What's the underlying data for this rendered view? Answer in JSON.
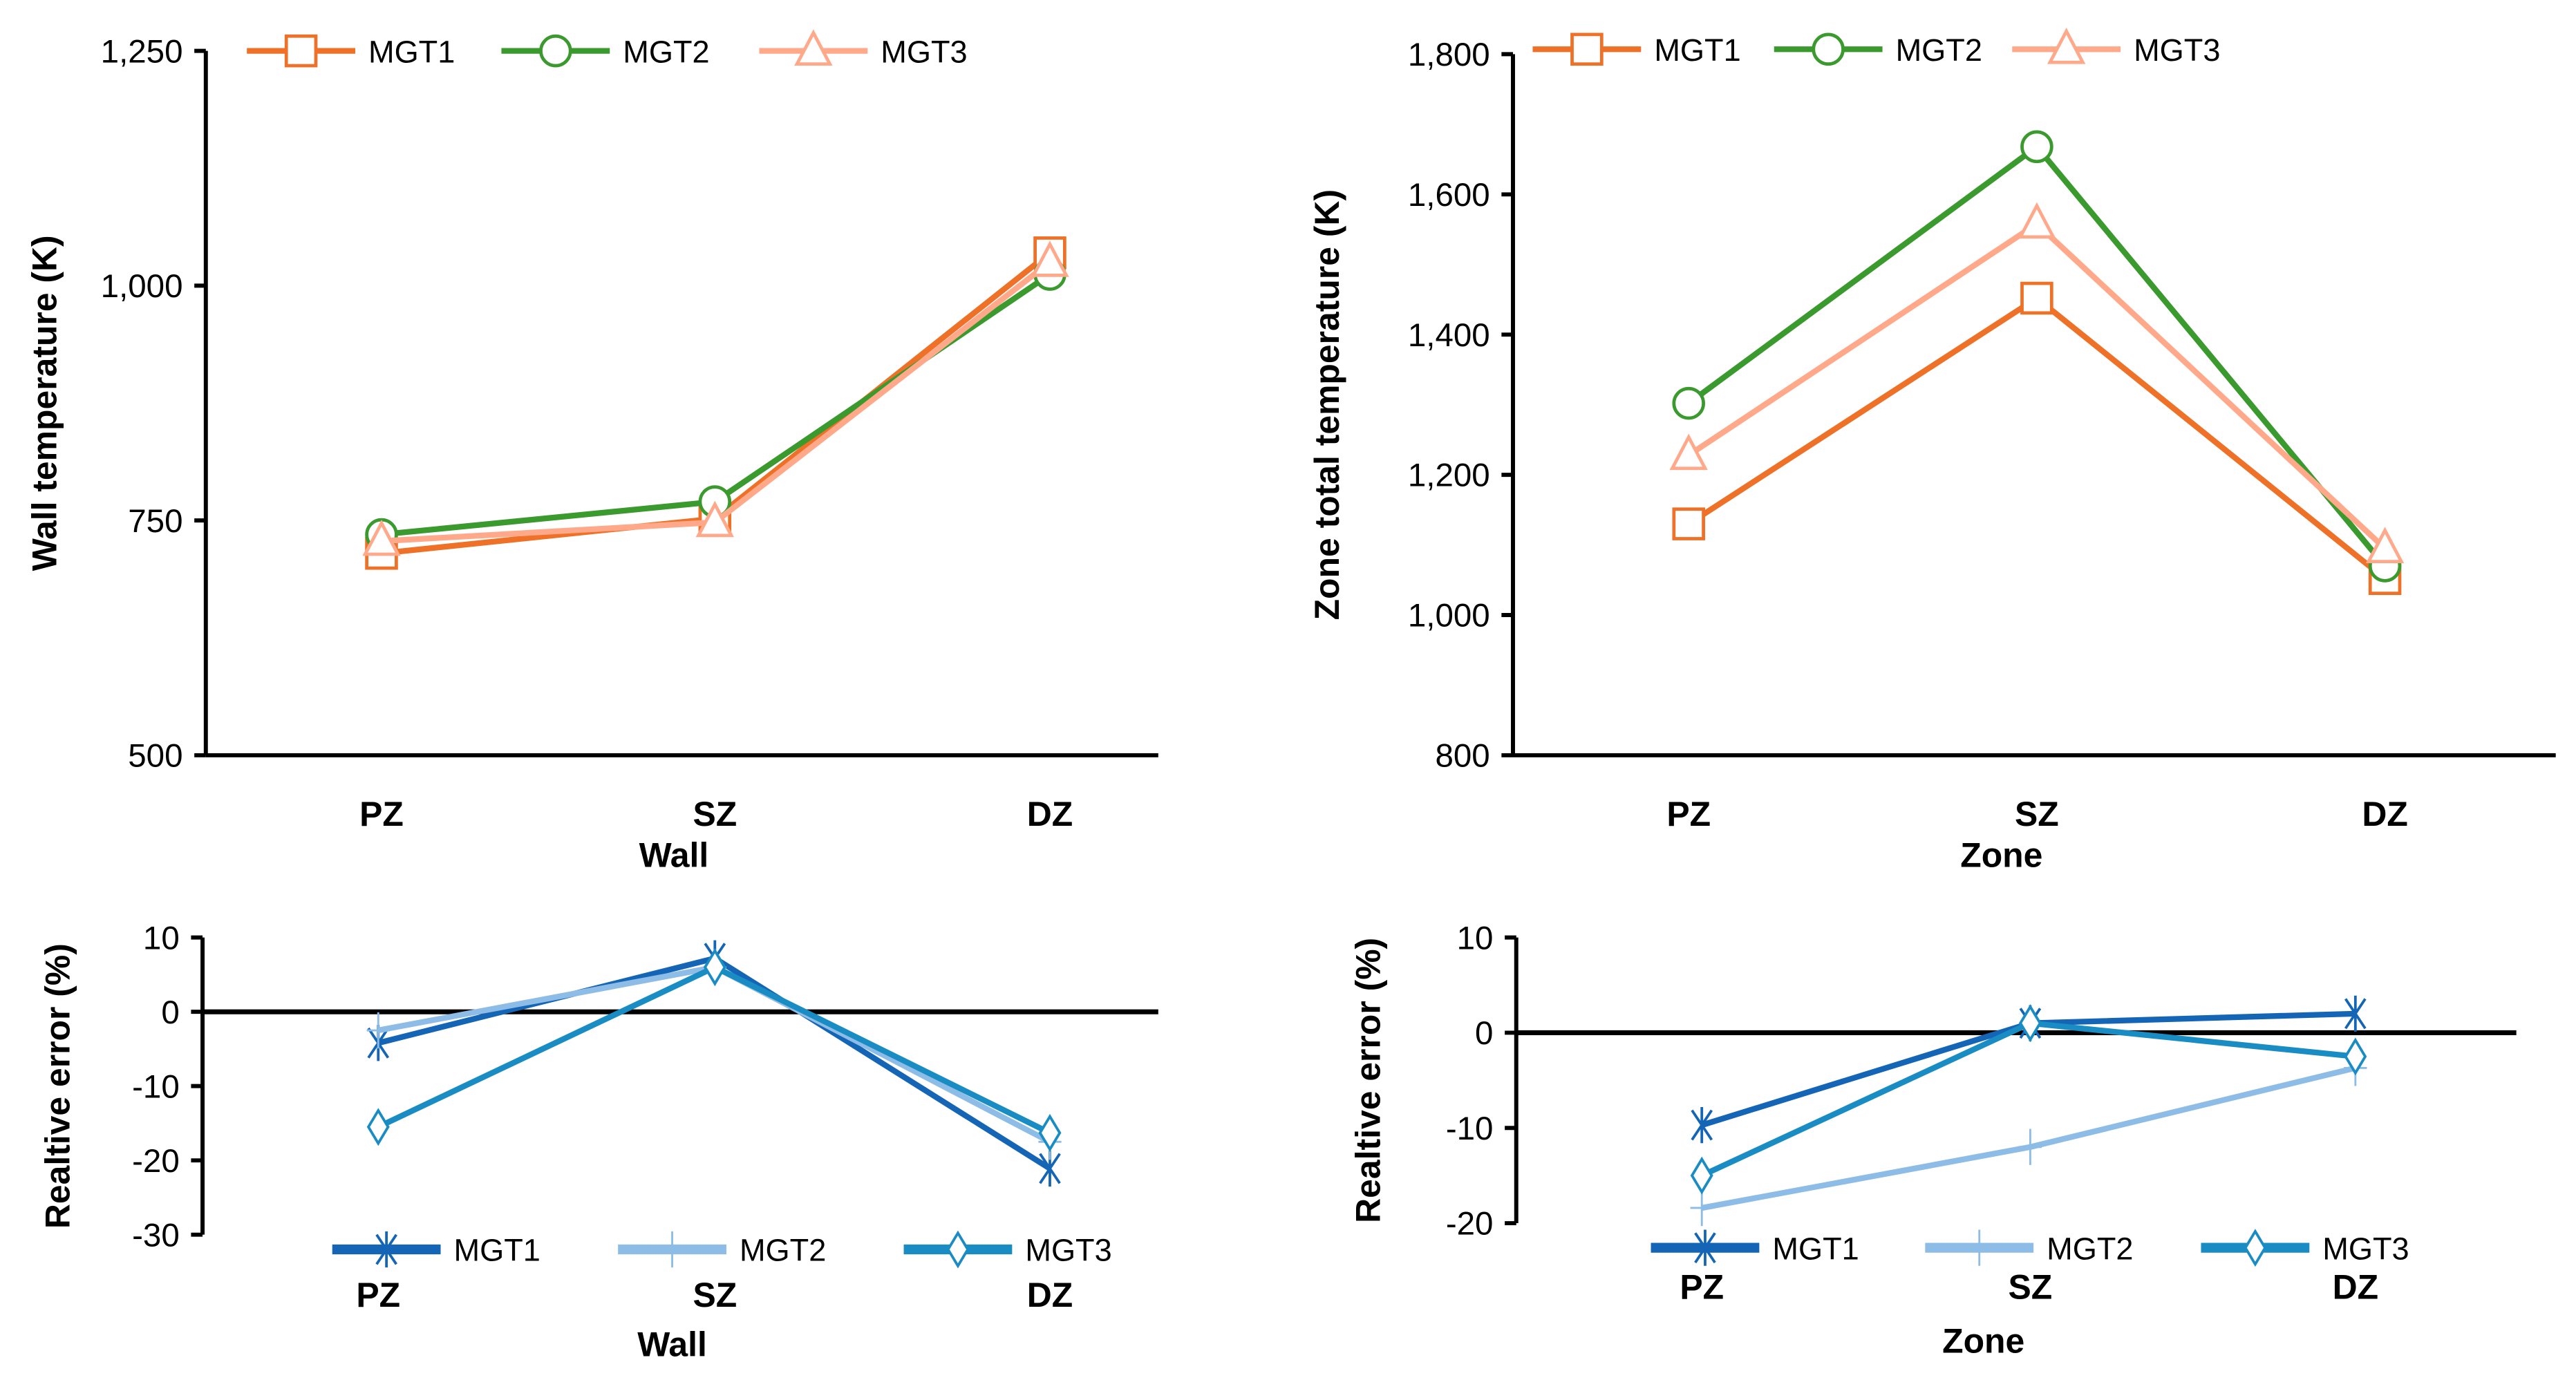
{
  "chart_data": [
    {
      "type": "line",
      "xlabel": "Wall",
      "ylabel": "Wall temperature (K)",
      "categories": [
        "PZ",
        "SZ",
        "DZ"
      ],
      "ylim": [
        500,
        1250
      ],
      "yticks": [
        500,
        750,
        1000,
        1250
      ],
      "ytick_labels": [
        "500",
        "750",
        "1,000",
        "1,250"
      ],
      "legend": "top",
      "grid": false,
      "series": [
        {
          "name": "MGT1",
          "values": [
            715,
            752,
            1035
          ],
          "color": "#EE7127",
          "marker": "square"
        },
        {
          "name": "MGT2",
          "values": [
            735,
            770,
            1012
          ],
          "color": "#3A9A2E",
          "marker": "circle"
        },
        {
          "name": "MGT3",
          "values": [
            728,
            748,
            1025
          ],
          "color": "#FFA98A",
          "marker": "triangle"
        }
      ]
    },
    {
      "type": "line",
      "xlabel": "Zone",
      "ylabel": "Zone total temperature (K)",
      "categories": [
        "PZ",
        "SZ",
        "DZ"
      ],
      "ylim": [
        800,
        1800
      ],
      "yticks": [
        800,
        1000,
        1200,
        1400,
        1600,
        1800
      ],
      "ytick_labels": [
        "800",
        "1,000",
        "1,200",
        "1,400",
        "1,600",
        "1,800"
      ],
      "legend": "top",
      "grid": false,
      "series": [
        {
          "name": "MGT1",
          "values": [
            1130,
            1452,
            1052
          ],
          "color": "#EE7127",
          "marker": "square"
        },
        {
          "name": "MGT2",
          "values": [
            1302,
            1668,
            1070
          ],
          "color": "#3A9A2E",
          "marker": "circle"
        },
        {
          "name": "MGT3",
          "values": [
            1228,
            1558,
            1095
          ],
          "color": "#FFA98A",
          "marker": "triangle"
        }
      ]
    },
    {
      "type": "line",
      "xlabel": "Wall",
      "ylabel": "Realtive error (%)",
      "categories": [
        "PZ",
        "SZ",
        "DZ"
      ],
      "ylim": [
        -30,
        10
      ],
      "yticks": [
        -30,
        -20,
        -10,
        0,
        10
      ],
      "ytick_labels": [
        "-30",
        "-20",
        "-10",
        "0",
        "10"
      ],
      "legend": "bottom",
      "grid": false,
      "series": [
        {
          "name": "MGT1",
          "values": [
            -4.2,
            7.2,
            -21.1
          ],
          "color": "#1565B7",
          "marker": "star"
        },
        {
          "name": "MGT2",
          "values": [
            -2.5,
            6.0,
            -17.5
          ],
          "color": "#8DBDE6",
          "marker": "plus"
        },
        {
          "name": "MGT3",
          "values": [
            -15.5,
            6.0,
            -16.3
          ],
          "color": "#1A8CC4",
          "marker": "diamond"
        }
      ]
    },
    {
      "type": "line",
      "xlabel": "Zone",
      "ylabel": "Realtive error (%)",
      "categories": [
        "PZ",
        "SZ",
        "DZ"
      ],
      "ylim": [
        -20,
        10
      ],
      "yticks": [
        -20,
        -10,
        0,
        10
      ],
      "ytick_labels": [
        "-20",
        "-10",
        "0",
        "10"
      ],
      "legend": "bottom",
      "grid": false,
      "series": [
        {
          "name": "MGT1",
          "values": [
            -9.7,
            1.0,
            2.0
          ],
          "color": "#1565B7",
          "marker": "star"
        },
        {
          "name": "MGT2",
          "values": [
            -18.4,
            -12.0,
            -3.7
          ],
          "color": "#8DBDE6",
          "marker": "plus"
        },
        {
          "name": "MGT3",
          "values": [
            -15.0,
            1.0,
            -2.5
          ],
          "color": "#1A8CC4",
          "marker": "diamond"
        }
      ]
    }
  ]
}
